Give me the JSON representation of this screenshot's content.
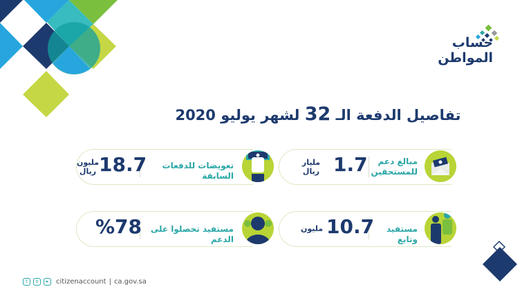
{
  "logo": {
    "line1": "حساب",
    "line2": "المواطن"
  },
  "title": {
    "before": "تفاصيل الدفعة الـ",
    "number": "32",
    "after": "لشهر يوليو 2020"
  },
  "cards": [
    {
      "label": "مبالغ دعم للمستحقين",
      "value": "1.7",
      "unit_top": "مليار",
      "unit_bottom": "ريال",
      "icon": "envelope-money-icon"
    },
    {
      "label": "تعويضات للدفعات السابقة",
      "value": "18.7",
      "unit_top": "مليون",
      "unit_bottom": "ريال",
      "icon": "hand-money-icon"
    },
    {
      "label": "مستفيد وتابع",
      "value": "10.7",
      "unit_top": "مليون",
      "unit_bottom": "",
      "icon": "family-icon"
    },
    {
      "label": "مستفيد تحصلوا على الدعم",
      "value": "%78",
      "unit_top": "",
      "unit_bottom": "",
      "icon": "person-icon"
    }
  ],
  "footer": {
    "handle": "citizenaccount",
    "separator": "|",
    "website": "ca.gov.sa",
    "icons": [
      "twitter-icon",
      "instagram-icon",
      "youtube-icon"
    ]
  },
  "colors": {
    "navy": "#1d3a6e",
    "lime": "#b8d436",
    "teal": "#2aa6a6",
    "blue": "#27a6de"
  }
}
